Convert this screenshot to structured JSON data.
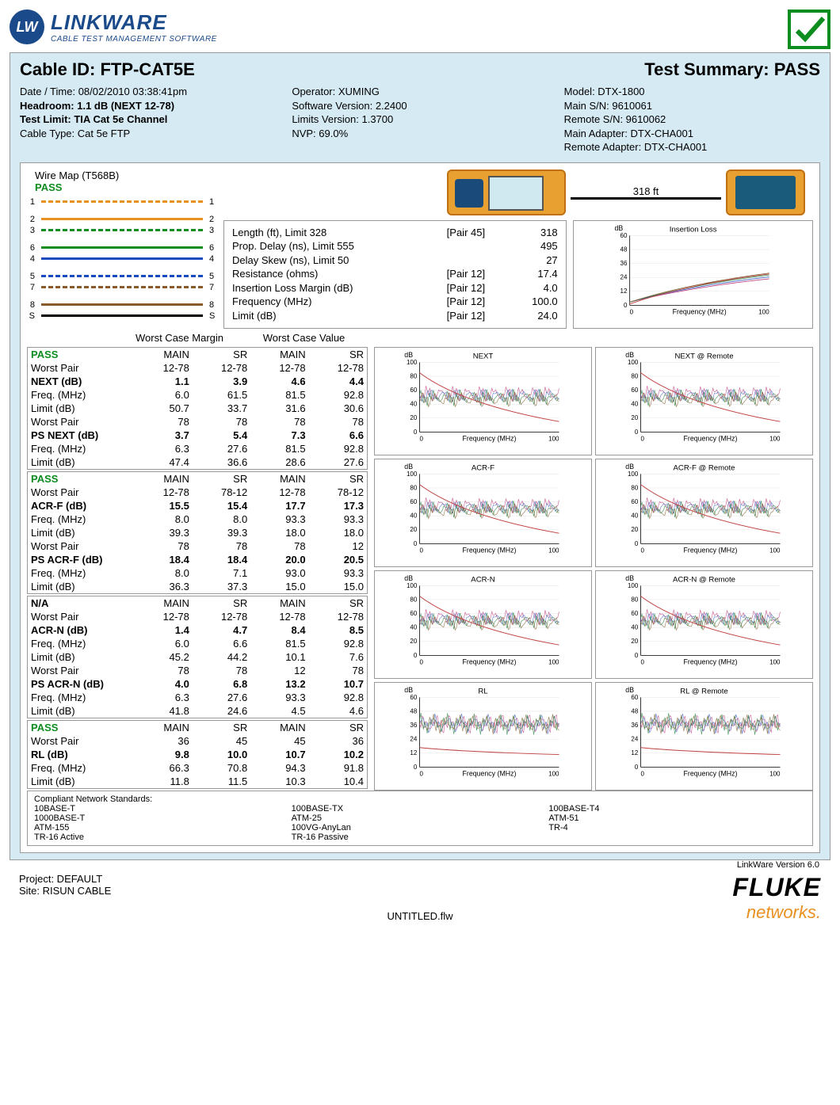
{
  "logo": {
    "lw": "LW",
    "brand": "LINKWARE",
    "tagline": "CABLE TEST MANAGEMENT SOFTWARE"
  },
  "title": {
    "cable_id_label": "Cable ID: FTP-CAT5E",
    "summary_label": "Test Summary: PASS"
  },
  "info": {
    "col1": {
      "datetime": "Date / Time: 08/02/2010 03:38:41pm",
      "headroom": "Headroom: 1.1 dB (NEXT 12-78)",
      "testlimit": "Test Limit: TIA Cat 5e Channel",
      "cabletype": "Cable Type: Cat 5e FTP"
    },
    "col2": {
      "operator": "Operator: XUMING",
      "swver": "Software Version: 2.2400",
      "limver": "Limits Version: 1.3700",
      "nvp": "NVP: 69.0%"
    },
    "col3": {
      "model": "Model: DTX-1800",
      "mainsn": "Main S/N: 9610061",
      "remotesn": "Remote S/N: 9610062",
      "mainadapter": "Main Adapter: DTX-CHA001",
      "remoteadapter": "Remote Adapter: DTX-CHA001"
    }
  },
  "wiremap": {
    "title": "Wire Map (T568B)",
    "pass": "PASS",
    "pairs": [
      {
        "l": "1",
        "r": "1",
        "color": "#e89020",
        "dash": "6,4"
      },
      {
        "l": "2",
        "r": "2",
        "color": "#e89020",
        "dash": "0"
      },
      {
        "l": "3",
        "r": "3",
        "color": "#0d8c1f",
        "dash": "6,4"
      },
      {
        "l": "6",
        "r": "6",
        "color": "#0d8c1f",
        "dash": "0"
      },
      {
        "l": "4",
        "r": "4",
        "color": "#1a4ac0",
        "dash": "0"
      },
      {
        "l": "5",
        "r": "5",
        "color": "#1a4ac0",
        "dash": "6,4"
      },
      {
        "l": "7",
        "r": "7",
        "color": "#8a5a2a",
        "dash": "6,4"
      },
      {
        "l": "8",
        "r": "8",
        "color": "#8a5a2a",
        "dash": "0"
      },
      {
        "l": "S",
        "r": "S",
        "color": "#000",
        "dash": "0"
      }
    ]
  },
  "cable_length": "318 ft",
  "measurements": [
    {
      "label": "Length (ft), Limit 328",
      "pair": "[Pair 45]",
      "val": "318"
    },
    {
      "label": "Prop. Delay (ns), Limit 555",
      "pair": "",
      "val": "495"
    },
    {
      "label": "Delay Skew (ns), Limit 50",
      "pair": "",
      "val": "27"
    },
    {
      "label": "Resistance (ohms)",
      "pair": "[Pair 12]",
      "val": "17.4"
    },
    {
      "label": "",
      "pair": "",
      "val": ""
    },
    {
      "label": "Insertion Loss Margin (dB)",
      "pair": "[Pair 12]",
      "val": "4.0"
    },
    {
      "label": "Frequency (MHz)",
      "pair": "[Pair 12]",
      "val": "100.0"
    },
    {
      "label": "Limit (dB)",
      "pair": "[Pair 12]",
      "val": "24.0"
    }
  ],
  "chart_insertion": {
    "title": "Insertion Loss",
    "ylabel": "dB",
    "xlabel": "Frequency (MHz)",
    "xmax": "100",
    "ymax": "60",
    "yticks": [
      "60",
      "48",
      "36",
      "24",
      "12",
      "0"
    ],
    "xticks": [
      "0",
      "100"
    ]
  },
  "section_headers": {
    "wcm": "Worst Case Margin",
    "wcv": "Worst Case Value"
  },
  "col_headers": [
    "MAIN",
    "SR",
    "MAIN",
    "SR"
  ],
  "blocks": [
    {
      "status": "PASS",
      "status_color": "#0d8c1f",
      "rows": [
        {
          "label": "Worst Pair",
          "v": [
            "12-78",
            "12-78",
            "12-78",
            "12-78"
          ],
          "bold": false
        },
        {
          "label": "NEXT (dB)",
          "v": [
            "1.1",
            "3.9",
            "4.6",
            "4.4"
          ],
          "bold": true
        },
        {
          "label": "Freq. (MHz)",
          "v": [
            "6.0",
            "61.5",
            "81.5",
            "92.8"
          ],
          "bold": false
        },
        {
          "label": "Limit (dB)",
          "v": [
            "50.7",
            "33.7",
            "31.6",
            "30.6"
          ],
          "bold": false
        },
        {
          "label": "Worst Pair",
          "v": [
            "78",
            "78",
            "78",
            "78"
          ],
          "bold": false
        },
        {
          "label": "PS NEXT (dB)",
          "v": [
            "3.7",
            "5.4",
            "7.3",
            "6.6"
          ],
          "bold": true
        },
        {
          "label": "Freq. (MHz)",
          "v": [
            "6.3",
            "27.6",
            "81.5",
            "92.8"
          ],
          "bold": false
        },
        {
          "label": "Limit (dB)",
          "v": [
            "47.4",
            "36.6",
            "28.6",
            "27.6"
          ],
          "bold": false
        }
      ]
    },
    {
      "status": "PASS",
      "status_color": "#0d8c1f",
      "rows": [
        {
          "label": "Worst Pair",
          "v": [
            "12-78",
            "78-12",
            "12-78",
            "78-12"
          ],
          "bold": false
        },
        {
          "label": "ACR-F (dB)",
          "v": [
            "15.5",
            "15.4",
            "17.7",
            "17.3"
          ],
          "bold": true
        },
        {
          "label": "Freq. (MHz)",
          "v": [
            "8.0",
            "8.0",
            "93.3",
            "93.3"
          ],
          "bold": false
        },
        {
          "label": "Limit (dB)",
          "v": [
            "39.3",
            "39.3",
            "18.0",
            "18.0"
          ],
          "bold": false
        },
        {
          "label": "Worst Pair",
          "v": [
            "78",
            "78",
            "78",
            "12"
          ],
          "bold": false
        },
        {
          "label": "PS ACR-F (dB)",
          "v": [
            "18.4",
            "18.4",
            "20.0",
            "20.5"
          ],
          "bold": true
        },
        {
          "label": "Freq. (MHz)",
          "v": [
            "8.0",
            "7.1",
            "93.0",
            "93.3"
          ],
          "bold": false
        },
        {
          "label": "Limit (dB)",
          "v": [
            "36.3",
            "37.3",
            "15.0",
            "15.0"
          ],
          "bold": false
        }
      ]
    },
    {
      "status": "N/A",
      "status_color": "#000",
      "rows": [
        {
          "label": "Worst Pair",
          "v": [
            "12-78",
            "12-78",
            "12-78",
            "12-78"
          ],
          "bold": false
        },
        {
          "label": "ACR-N (dB)",
          "v": [
            "1.4",
            "4.7",
            "8.4",
            "8.5"
          ],
          "bold": true
        },
        {
          "label": "Freq. (MHz)",
          "v": [
            "6.0",
            "6.6",
            "81.5",
            "92.8"
          ],
          "bold": false
        },
        {
          "label": "Limit (dB)",
          "v": [
            "45.2",
            "44.2",
            "10.1",
            "7.6"
          ],
          "bold": false
        },
        {
          "label": "Worst Pair",
          "v": [
            "78",
            "78",
            "12",
            "78"
          ],
          "bold": false
        },
        {
          "label": "PS ACR-N (dB)",
          "v": [
            "4.0",
            "6.8",
            "13.2",
            "10.7"
          ],
          "bold": true
        },
        {
          "label": "Freq. (MHz)",
          "v": [
            "6.3",
            "27.6",
            "93.3",
            "92.8"
          ],
          "bold": false
        },
        {
          "label": "Limit (dB)",
          "v": [
            "41.8",
            "24.6",
            "4.5",
            "4.6"
          ],
          "bold": false
        }
      ]
    },
    {
      "status": "PASS",
      "status_color": "#0d8c1f",
      "rows": [
        {
          "label": "Worst Pair",
          "v": [
            "36",
            "45",
            "45",
            "36"
          ],
          "bold": false
        },
        {
          "label": "RL (dB)",
          "v": [
            "9.8",
            "10.0",
            "10.7",
            "10.2"
          ],
          "bold": true
        },
        {
          "label": "Freq. (MHz)",
          "v": [
            "66.3",
            "70.8",
            "94.3",
            "91.8"
          ],
          "bold": false
        },
        {
          "label": "Limit (dB)",
          "v": [
            "11.8",
            "11.5",
            "10.3",
            "10.4"
          ],
          "bold": false
        }
      ]
    }
  ],
  "charts": [
    {
      "title": "NEXT",
      "ymax": 100,
      "yticks": [
        "100",
        "80",
        "60",
        "40",
        "20",
        "0"
      ]
    },
    {
      "title": "NEXT @ Remote",
      "ymax": 100,
      "yticks": [
        "100",
        "80",
        "60",
        "40",
        "20",
        "0"
      ]
    },
    {
      "title": "ACR-F",
      "ymax": 100,
      "yticks": [
        "100",
        "80",
        "60",
        "40",
        "20",
        "0"
      ]
    },
    {
      "title": "ACR-F @ Remote",
      "ymax": 100,
      "yticks": [
        "100",
        "80",
        "60",
        "40",
        "20",
        "0"
      ]
    },
    {
      "title": "ACR-N",
      "ymax": 100,
      "yticks": [
        "100",
        "80",
        "60",
        "40",
        "20",
        "0"
      ]
    },
    {
      "title": "ACR-N @ Remote",
      "ymax": 100,
      "yticks": [
        "100",
        "80",
        "60",
        "40",
        "20",
        "0"
      ]
    },
    {
      "title": "RL",
      "ymax": 60,
      "yticks": [
        "60",
        "48",
        "36",
        "24",
        "12",
        "0"
      ]
    },
    {
      "title": "RL @ Remote",
      "ymax": 60,
      "yticks": [
        "60",
        "48",
        "36",
        "24",
        "12",
        "0"
      ]
    }
  ],
  "chart_common": {
    "ylabel": "dB",
    "xlabel": "Frequency (MHz)",
    "xticks": [
      "0",
      "100"
    ]
  },
  "compliant": {
    "title": "Compliant Network Standards:",
    "items": [
      "10BASE-T",
      "100BASE-TX",
      "100BASE-T4",
      "1000BASE-T",
      "ATM-25",
      "ATM-51",
      "ATM-155",
      "100VG-AnyLan",
      "TR-4",
      "TR-16 Active",
      "TR-16 Passive",
      ""
    ]
  },
  "footer": {
    "project": "Project: DEFAULT",
    "site": "Site: RISUN  CABLE",
    "version": "LinkWare Version  6.0",
    "fluke": "FLUKE",
    "networks": "networks.",
    "filename": "UNTITLED.flw"
  },
  "chart_colors": [
    "#c04080",
    "#4060c0",
    "#208040",
    "#806030"
  ]
}
